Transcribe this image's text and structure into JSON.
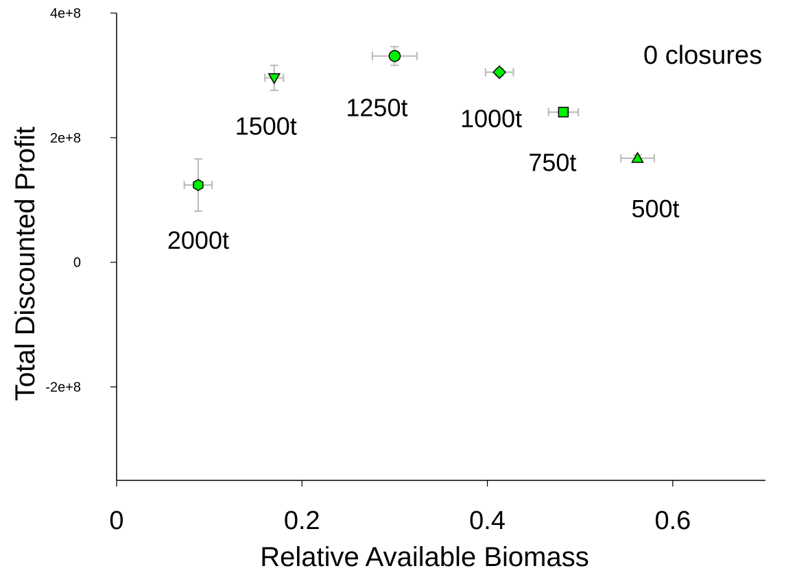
{
  "chart_data": {
    "type": "scatter",
    "xlabel": "Relative Available Biomass",
    "ylabel": "Total Discounted Profit",
    "xlim": [
      0,
      0.7
    ],
    "ylim": [
      -350000000,
      400000000
    ],
    "x_ticks": [
      0,
      0.2,
      0.4,
      0.6
    ],
    "x_tick_labels": [
      "0",
      "0.2",
      "0.4",
      "0.6"
    ],
    "y_ticks": [
      -200000000,
      0,
      200000000,
      400000000
    ],
    "y_tick_labels": [
      "-2e+8",
      "0",
      "2e+8",
      "4e+8"
    ],
    "grid": false,
    "annotation": "0 closures",
    "marker_color": "#00ee00",
    "errorbar_color": "#b8b8b8",
    "points": [
      {
        "label": "2000t",
        "x": 0.088,
        "y": 124000000,
        "x_err": 0.015,
        "y_err": 42000000,
        "marker": "hexagon"
      },
      {
        "label": "1500t",
        "x": 0.17,
        "y": 296000000,
        "x_err": 0.01,
        "y_err": 20000000,
        "marker": "triangle-down"
      },
      {
        "label": "1250t",
        "x": 0.3,
        "y": 331000000,
        "x_err": 0.024,
        "y_err": 15000000,
        "marker": "circle"
      },
      {
        "label": "1000t",
        "x": 0.413,
        "y": 305000000,
        "x_err": 0.015,
        "y_err": 6000000,
        "marker": "diamond"
      },
      {
        "label": "750t",
        "x": 0.482,
        "y": 241000000,
        "x_err": 0.016,
        "y_err": 5000000,
        "marker": "square"
      },
      {
        "label": "500t",
        "x": 0.562,
        "y": 167000000,
        "x_err": 0.018,
        "y_err": 5000000,
        "marker": "triangle-up"
      }
    ]
  }
}
